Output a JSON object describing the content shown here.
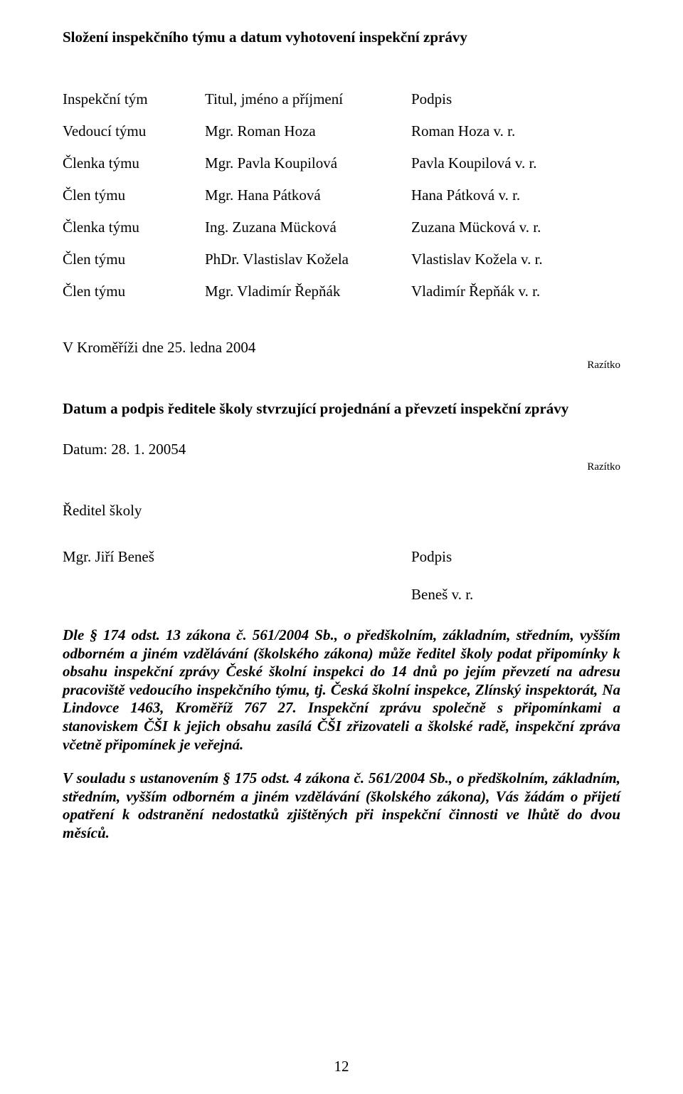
{
  "title": "Složení inspekčního týmu a datum vyhotovení inspekční zprávy",
  "team_header": {
    "role": "Inspekční tým",
    "name": "Titul, jméno a příjmení",
    "sig": "Podpis"
  },
  "team": [
    {
      "role": "Vedoucí týmu",
      "name": "Mgr. Roman Hoza",
      "sig": "Roman Hoza v. r."
    },
    {
      "role": "Členka týmu",
      "name": "Mgr. Pavla Koupilová",
      "sig": "Pavla Koupilová v. r."
    },
    {
      "role": "Člen týmu",
      "name": "Mgr. Hana Pátková",
      "sig": "Hana Pátková v. r."
    },
    {
      "role": "Členka týmu",
      "name": "Ing. Zuzana Mücková",
      "sig": "Zuzana Mücková v. r."
    },
    {
      "role": "Člen týmu",
      "name": "PhDr. Vlastislav Kožela",
      "sig": "Vlastislav Kožela v. r."
    },
    {
      "role": "Člen týmu",
      "name": "Mgr. Vladimír Řepňák",
      "sig": "Vladimír Řepňák v. r."
    }
  ],
  "place_date": "V Kroměříži dne 25. ledna 2004",
  "stamp": "Razítko",
  "section2_heading": "Datum a podpis ředitele školy stvrzující projednání a převzetí inspekční zprávy",
  "date2": "Datum: 28. 1. 20054",
  "reditel_label": "Ředitel školy",
  "director_name": "Mgr. Jiří Beneš",
  "podpis_label": "Podpis",
  "benes_sig": "Beneš v. r.",
  "legal1_lead": "Dle § 174 odst. 13 zákona č. 561/2004 Sb.",
  "legal1_rest": ", o předškolním, základním, středním, vyšším odborném a jiném vzdělávání (školského zákona) může ředitel školy podat připomínky k obsahu inspekční zprávy České školní inspekci do 14 dnů po jejím převzetí na adresu pracoviště vedoucího inspekčního týmu, tj. Česká školní inspekce, Zlínský inspektorát, Na Lindovce 1463, Kroměříž 767 27. Inspekční zprávu společně s připomínkami a stanoviskem ČŠI k jejich obsahu zasílá ČŠI zřizovateli a školské radě, inspekční zpráva včetně připomínek je veřejná.",
  "legal2": "V souladu s ustanovením § 175 odst. 4 zákona č. 561/2004 Sb., o předškolním, základním, středním, vyšším odborném a jiném vzdělávání (školského zákona), Vás žádám o přijetí opatření k odstranění nedostatků zjištěných při inspekční činnosti ve lhůtě do dvou měsíců.",
  "page_number": "12"
}
